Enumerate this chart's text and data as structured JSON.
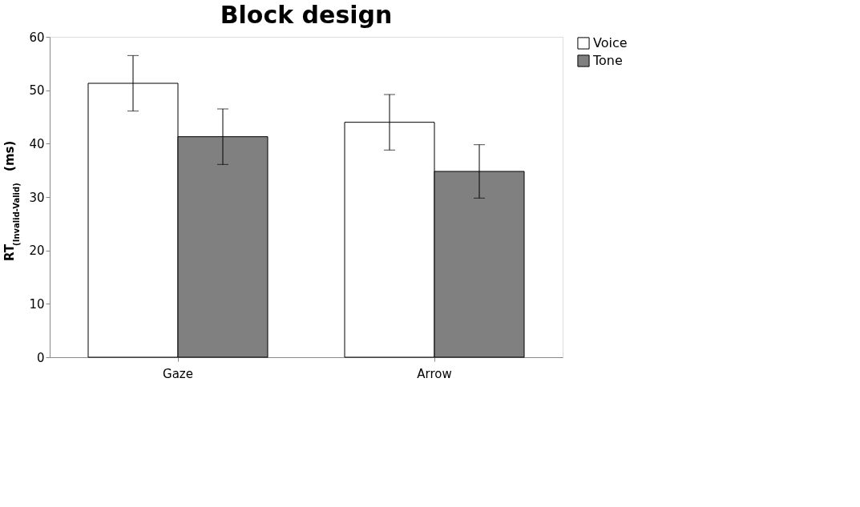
{
  "chart_data": {
    "type": "bar",
    "title": "Block design",
    "ylabel": "RT$_{(Invalid-Valid)}$ (ms)",
    "categories": [
      "Gaze",
      "Arrow"
    ],
    "series": [
      {
        "name": "Voice",
        "color": "#ffffff",
        "values": [
          51.3,
          44.0
        ],
        "errors": [
          5.2,
          5.2
        ]
      },
      {
        "name": "Tone",
        "color": "#808080",
        "values": [
          41.3,
          34.8
        ],
        "errors": [
          5.2,
          5.0
        ]
      }
    ],
    "ylim": [
      0,
      60
    ],
    "yticks": [
      0,
      10,
      20,
      30,
      40,
      50,
      60
    ],
    "grid": false,
    "legend": "right"
  }
}
